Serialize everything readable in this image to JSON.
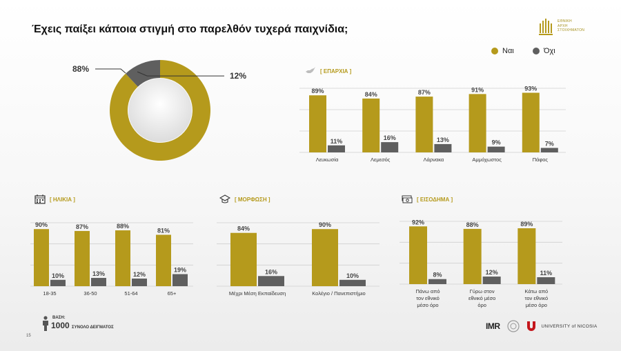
{
  "title": "Έχεις παίξει κάποια στιγμή στο παρελθόν τυχερά παιχνίδια;",
  "logo": {
    "lines": [
      "ΕΘΝΙΚΗ",
      "ΑΡΧΗ",
      "ΣΤΟΙΧΗΜΑΤΟΝ"
    ]
  },
  "legend": {
    "yes": "Ναι",
    "no": "Όχι"
  },
  "colors": {
    "yes": "#b59a1c",
    "no": "#5f5f5f",
    "grid": "#cfcfcf"
  },
  "sections": {
    "eparxia": "[ ΕΠΑΡΧΙΑ ]",
    "ilikia": "[ ΗΛΙΚΙΑ ]",
    "morfosi": "[ ΜΟΡΦΩΣΗ ]",
    "eisodima": "[ ΕΙΣΟΔΗΜΑ ]"
  },
  "footer": {
    "base_label": "ΒΑΣΗ:",
    "base_value": "1000",
    "base_desc": "ΣΥΝΟΛΟ ΔΕΙΓΜΑΤΟΣ",
    "page_number": "15",
    "imr": "IMR",
    "university": "UNIVERSITY of NICOSIA"
  },
  "chart_data": [
    {
      "type": "pie",
      "id": "overall",
      "slices": [
        {
          "name": "Ναι",
          "value": 88,
          "label": "88%"
        },
        {
          "name": "Όχι",
          "value": 12,
          "label": "12%"
        }
      ]
    },
    {
      "type": "bar",
      "id": "eparxia",
      "categories": [
        "Λευκωσία",
        "Λεμεσός",
        "Λάρνακα",
        "Αμμόχωστος",
        "Πάφος"
      ],
      "series": [
        {
          "name": "Ναι",
          "values": [
            89,
            84,
            87,
            91,
            93
          ]
        },
        {
          "name": "Όχι",
          "values": [
            11,
            16,
            13,
            9,
            7
          ]
        }
      ],
      "ylim": [
        0,
        100
      ]
    },
    {
      "type": "bar",
      "id": "ilikia",
      "categories": [
        "18-35",
        "36-50",
        "51-64",
        "65+"
      ],
      "series": [
        {
          "name": "Ναι",
          "values": [
            90,
            87,
            88,
            81
          ]
        },
        {
          "name": "Όχι",
          "values": [
            10,
            13,
            12,
            19
          ]
        }
      ],
      "ylim": [
        0,
        100
      ]
    },
    {
      "type": "bar",
      "id": "morfosi",
      "categories": [
        "Μέχρι Μέση Εκπαίδευση",
        "Κολέγιο / Πανεπιστήμιο"
      ],
      "series": [
        {
          "name": "Ναι",
          "values": [
            84,
            90
          ]
        },
        {
          "name": "Όχι",
          "values": [
            16,
            10
          ]
        }
      ],
      "ylim": [
        0,
        100
      ]
    },
    {
      "type": "bar",
      "id": "eisodima",
      "categories": [
        "Πάνω από τον εθνικό μέσο όρο",
        "Γύρω στον εθνικό μέσο όρο",
        "Κάτω από τον εθνικό μέσο όρο"
      ],
      "category_lines": [
        [
          "Πάνω από",
          "τον εθνικό",
          "μέσο όρο"
        ],
        [
          "Γύρω στον",
          "εθνικό μέσο",
          "όρο"
        ],
        [
          "Κάτω από",
          "τον εθνικό",
          "μέσο όρο"
        ]
      ],
      "series": [
        {
          "name": "Ναι",
          "values": [
            92,
            88,
            89
          ]
        },
        {
          "name": "Όχι",
          "values": [
            8,
            12,
            11
          ]
        }
      ],
      "ylim": [
        0,
        100
      ]
    }
  ]
}
